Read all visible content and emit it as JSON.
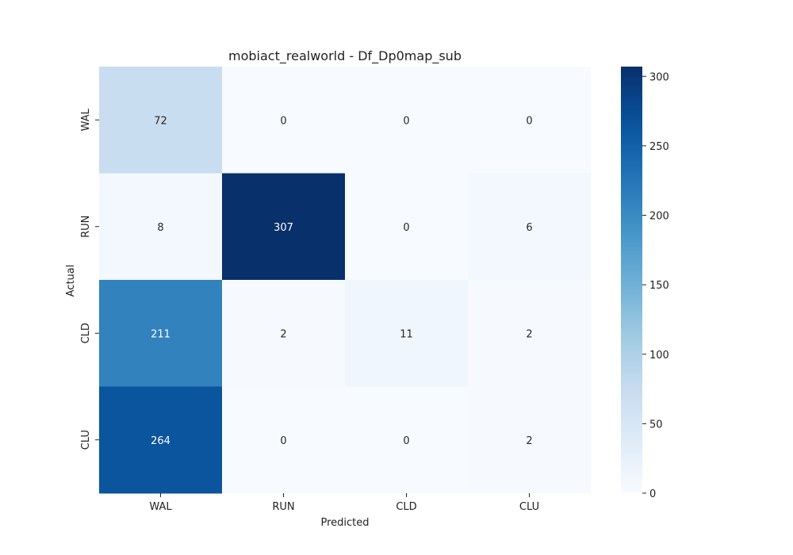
{
  "chart_data": {
    "type": "heatmap",
    "title": "mobiact_realworld - Df_Dp0map_sub",
    "xlabel": "Predicted",
    "ylabel": "Actual",
    "x_categories": [
      "WAL",
      "RUN",
      "CLD",
      "CLU"
    ],
    "y_categories": [
      "WAL",
      "RUN",
      "CLD",
      "CLU"
    ],
    "values": [
      [
        72,
        0,
        0,
        0
      ],
      [
        8,
        307,
        0,
        6
      ],
      [
        211,
        2,
        11,
        2
      ],
      [
        264,
        0,
        0,
        2
      ]
    ],
    "colormap": "Blues",
    "colorbar": {
      "range": [
        0,
        307
      ],
      "ticks": [
        0,
        50,
        100,
        150,
        200,
        250,
        300
      ]
    },
    "grid": false
  }
}
